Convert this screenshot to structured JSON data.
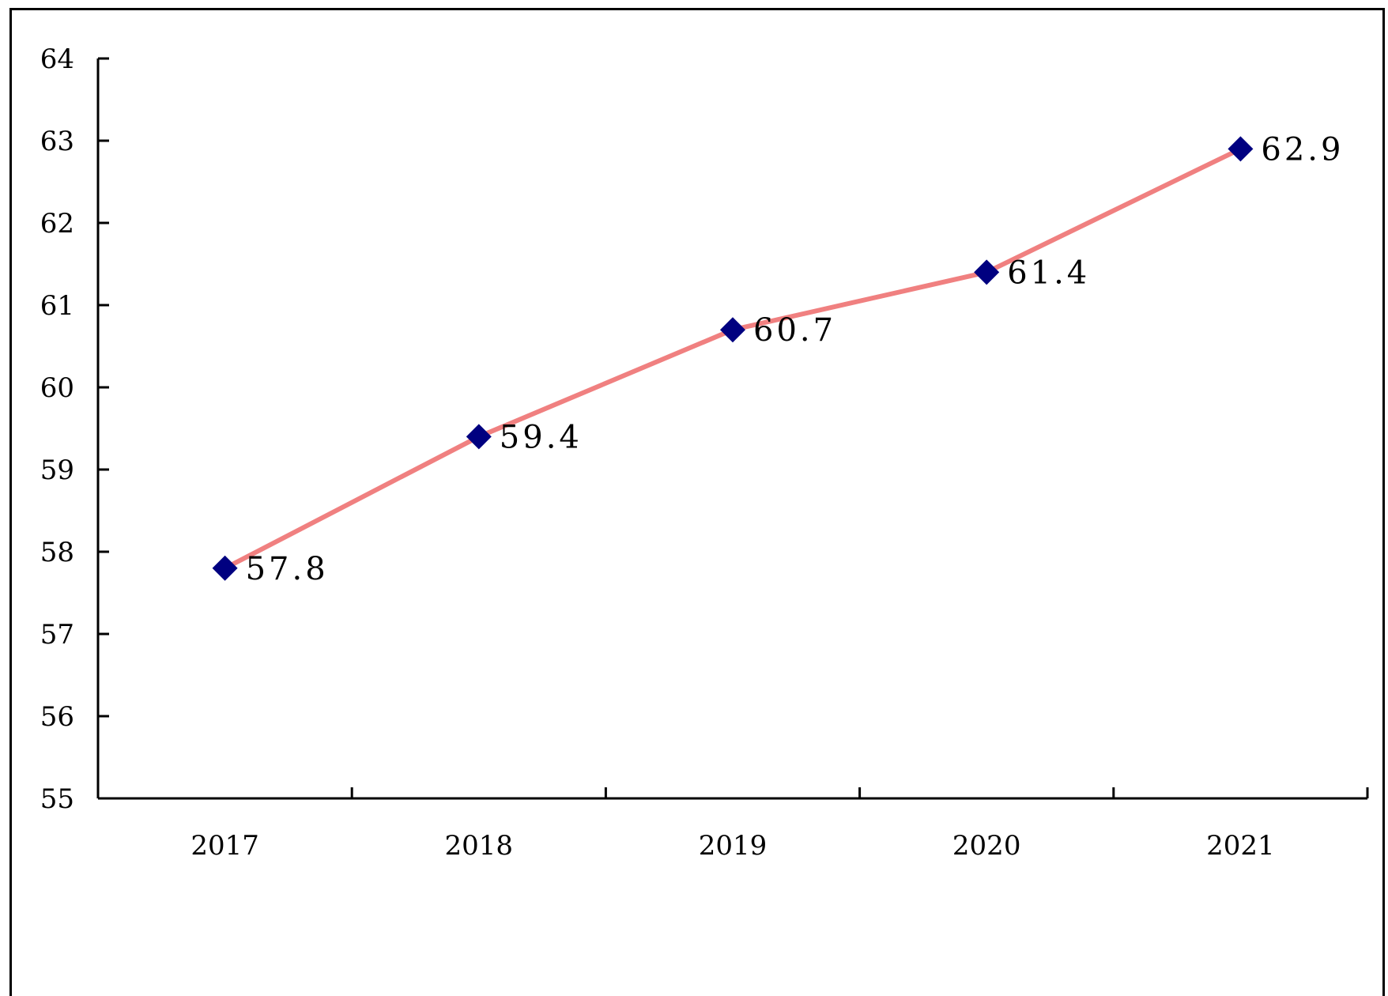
{
  "chart_data": {
    "type": "line",
    "categories": [
      "2017",
      "2018",
      "2019",
      "2020",
      "2021"
    ],
    "series": [
      {
        "values": [
          57.8,
          59.4,
          60.7,
          61.4,
          62.9
        ],
        "labels": [
          "57.8",
          "59.4",
          "60.7",
          "61.4",
          "62.9"
        ]
      }
    ],
    "title": "",
    "xlabel": "",
    "ylabel": "",
    "ylim": [
      55,
      64
    ],
    "yticks": [
      "55",
      "56",
      "57",
      "58",
      "59",
      "60",
      "61",
      "62",
      "63",
      "64"
    ],
    "grid": false,
    "legend": "none",
    "colors": {
      "line": "#f08080",
      "marker": "#000080",
      "axis": "#000000",
      "frame": "#000000"
    },
    "marker": "diamond"
  }
}
